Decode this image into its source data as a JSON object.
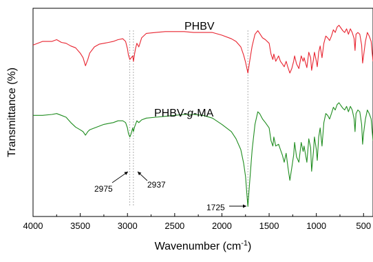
{
  "chart_data": {
    "type": "line",
    "xlabel": "Wavenumber (cm",
    "xlabel_superscript": "-1",
    "xlabel_suffix": ")",
    "ylabel": "Transmittance (%)",
    "xlim": [
      4000,
      400
    ],
    "x_reversed": true,
    "x_ticks": [
      4000,
      3500,
      3000,
      2500,
      2000,
      1500,
      1000,
      500
    ],
    "y_ticks_shown": false,
    "grid": false,
    "series": [
      {
        "name": "PHBV",
        "color": "#e8232f",
        "points": [
          [
            4000,
            0.74
          ],
          [
            3900,
            0.7
          ],
          [
            3800,
            0.7
          ],
          [
            3750,
            0.68
          ],
          [
            3700,
            0.71
          ],
          [
            3650,
            0.72
          ],
          [
            3600,
            0.75
          ],
          [
            3550,
            0.77
          ],
          [
            3500,
            0.83
          ],
          [
            3470,
            0.88
          ],
          [
            3445,
            0.97
          ],
          [
            3420,
            0.9
          ],
          [
            3400,
            0.83
          ],
          [
            3350,
            0.76
          ],
          [
            3300,
            0.73
          ],
          [
            3250,
            0.72
          ],
          [
            3200,
            0.71
          ],
          [
            3150,
            0.7
          ],
          [
            3100,
            0.68
          ],
          [
            3050,
            0.67
          ],
          [
            3020,
            0.7
          ],
          [
            3000,
            0.78
          ],
          [
            2990,
            0.85
          ],
          [
            2975,
            0.9
          ],
          [
            2960,
            0.88
          ],
          [
            2945,
            0.86
          ],
          [
            2937,
            0.92
          ],
          [
            2925,
            0.84
          ],
          [
            2915,
            0.78
          ],
          [
            2900,
            0.72
          ],
          [
            2880,
            0.76
          ],
          [
            2850,
            0.66
          ],
          [
            2800,
            0.61
          ],
          [
            2700,
            0.6
          ],
          [
            2600,
            0.59
          ],
          [
            2500,
            0.59
          ],
          [
            2400,
            0.59
          ],
          [
            2300,
            0.6
          ],
          [
            2200,
            0.6
          ],
          [
            2100,
            0.6
          ],
          [
            2000,
            0.63
          ],
          [
            1900,
            0.67
          ],
          [
            1850,
            0.7
          ],
          [
            1800,
            0.76
          ],
          [
            1770,
            0.85
          ],
          [
            1750,
            0.93
          ],
          [
            1735,
            1.0
          ],
          [
            1725,
            1.05
          ],
          [
            1715,
            0.98
          ],
          [
            1700,
            0.88
          ],
          [
            1680,
            0.75
          ],
          [
            1650,
            0.62
          ],
          [
            1620,
            0.58
          ],
          [
            1600,
            0.61
          ],
          [
            1570,
            0.66
          ],
          [
            1540,
            0.68
          ],
          [
            1500,
            0.72
          ],
          [
            1480,
            0.84
          ],
          [
            1460,
            0.9
          ],
          [
            1450,
            0.84
          ],
          [
            1430,
            0.92
          ],
          [
            1400,
            0.86
          ],
          [
            1380,
            0.92
          ],
          [
            1360,
            0.95
          ],
          [
            1340,
            0.98
          ],
          [
            1320,
            0.92
          ],
          [
            1300,
            0.99
          ],
          [
            1280,
            1.05
          ],
          [
            1260,
            1.0
          ],
          [
            1240,
            0.92
          ],
          [
            1230,
            0.86
          ],
          [
            1210,
            0.95
          ],
          [
            1185,
            1.0
          ],
          [
            1160,
            0.86
          ],
          [
            1140,
            0.92
          ],
          [
            1130,
            0.88
          ],
          [
            1100,
            0.99
          ],
          [
            1080,
            0.82
          ],
          [
            1060,
            0.88
          ],
          [
            1050,
            1.02
          ],
          [
            1030,
            0.9
          ],
          [
            1020,
            0.82
          ],
          [
            1000,
            0.92
          ],
          [
            990,
            0.98
          ],
          [
            975,
            0.82
          ],
          [
            960,
            0.75
          ],
          [
            940,
            0.88
          ],
          [
            920,
            0.72
          ],
          [
            900,
            0.64
          ],
          [
            880,
            0.66
          ],
          [
            860,
            0.69
          ],
          [
            840,
            0.64
          ],
          [
            820,
            0.57
          ],
          [
            800,
            0.6
          ],
          [
            780,
            0.54
          ],
          [
            760,
            0.52
          ],
          [
            740,
            0.55
          ],
          [
            720,
            0.58
          ],
          [
            700,
            0.6
          ],
          [
            680,
            0.56
          ],
          [
            660,
            0.62
          ],
          [
            640,
            0.56
          ],
          [
            620,
            0.6
          ],
          [
            600,
            0.67
          ],
          [
            590,
            0.8
          ],
          [
            580,
            0.62
          ],
          [
            560,
            0.6
          ],
          [
            540,
            0.62
          ],
          [
            520,
            0.74
          ],
          [
            510,
            0.94
          ],
          [
            500,
            0.86
          ],
          [
            480,
            0.7
          ],
          [
            460,
            0.6
          ],
          [
            440,
            0.64
          ],
          [
            420,
            0.7
          ],
          [
            400,
            0.92
          ]
        ]
      },
      {
        "name": "PHBV-g-MA",
        "label_prefix": "PHBV-",
        "label_italic": "g",
        "label_suffix": "-MA",
        "color": "#1e8c1e",
        "points": [
          [
            4000,
            1.52
          ],
          [
            3900,
            1.52
          ],
          [
            3800,
            1.51
          ],
          [
            3750,
            1.5
          ],
          [
            3700,
            1.52
          ],
          [
            3650,
            1.54
          ],
          [
            3600,
            1.6
          ],
          [
            3550,
            1.65
          ],
          [
            3500,
            1.68
          ],
          [
            3470,
            1.7
          ],
          [
            3445,
            1.74
          ],
          [
            3420,
            1.7
          ],
          [
            3400,
            1.68
          ],
          [
            3350,
            1.66
          ],
          [
            3300,
            1.64
          ],
          [
            3250,
            1.62
          ],
          [
            3200,
            1.61
          ],
          [
            3150,
            1.6
          ],
          [
            3100,
            1.58
          ],
          [
            3050,
            1.58
          ],
          [
            3020,
            1.6
          ],
          [
            3000,
            1.66
          ],
          [
            2990,
            1.72
          ],
          [
            2975,
            1.76
          ],
          [
            2960,
            1.72
          ],
          [
            2945,
            1.66
          ],
          [
            2937,
            1.7
          ],
          [
            2925,
            1.65
          ],
          [
            2915,
            1.62
          ],
          [
            2900,
            1.58
          ],
          [
            2880,
            1.6
          ],
          [
            2850,
            1.57
          ],
          [
            2800,
            1.55
          ],
          [
            2700,
            1.54
          ],
          [
            2600,
            1.53
          ],
          [
            2500,
            1.52
          ],
          [
            2400,
            1.51
          ],
          [
            2300,
            1.51
          ],
          [
            2200,
            1.52
          ],
          [
            2100,
            1.55
          ],
          [
            2000,
            1.62
          ],
          [
            1900,
            1.7
          ],
          [
            1850,
            1.78
          ],
          [
            1800,
            1.9
          ],
          [
            1770,
            2.05
          ],
          [
            1750,
            2.2
          ],
          [
            1735,
            2.4
          ],
          [
            1725,
            2.53
          ],
          [
            1715,
            2.38
          ],
          [
            1700,
            2.18
          ],
          [
            1680,
            1.9
          ],
          [
            1650,
            1.62
          ],
          [
            1620,
            1.48
          ],
          [
            1600,
            1.5
          ],
          [
            1570,
            1.56
          ],
          [
            1540,
            1.6
          ],
          [
            1500,
            1.66
          ],
          [
            1480,
            1.8
          ],
          [
            1460,
            1.86
          ],
          [
            1450,
            1.76
          ],
          [
            1430,
            1.86
          ],
          [
            1400,
            1.84
          ],
          [
            1380,
            1.9
          ],
          [
            1360,
            1.96
          ],
          [
            1340,
            2.04
          ],
          [
            1320,
            1.94
          ],
          [
            1300,
            2.1
          ],
          [
            1280,
            2.24
          ],
          [
            1260,
            2.1
          ],
          [
            1240,
            1.96
          ],
          [
            1230,
            1.82
          ],
          [
            1210,
            1.98
          ],
          [
            1185,
            2.04
          ],
          [
            1160,
            1.82
          ],
          [
            1140,
            1.92
          ],
          [
            1130,
            1.86
          ],
          [
            1100,
            2.04
          ],
          [
            1080,
            1.78
          ],
          [
            1060,
            1.88
          ],
          [
            1050,
            2.14
          ],
          [
            1030,
            1.92
          ],
          [
            1020,
            1.76
          ],
          [
            1000,
            1.9
          ],
          [
            990,
            2.02
          ],
          [
            975,
            1.76
          ],
          [
            960,
            1.66
          ],
          [
            940,
            1.86
          ],
          [
            920,
            1.6
          ],
          [
            900,
            1.5
          ],
          [
            880,
            1.52
          ],
          [
            860,
            1.56
          ],
          [
            840,
            1.5
          ],
          [
            820,
            1.43
          ],
          [
            800,
            1.46
          ],
          [
            780,
            1.4
          ],
          [
            760,
            1.38
          ],
          [
            740,
            1.41
          ],
          [
            720,
            1.44
          ],
          [
            700,
            1.46
          ],
          [
            680,
            1.42
          ],
          [
            660,
            1.48
          ],
          [
            640,
            1.42
          ],
          [
            620,
            1.46
          ],
          [
            600,
            1.56
          ],
          [
            590,
            1.7
          ],
          [
            580,
            1.5
          ],
          [
            560,
            1.46
          ],
          [
            540,
            1.48
          ],
          [
            520,
            1.62
          ],
          [
            510,
            1.84
          ],
          [
            500,
            1.72
          ],
          [
            480,
            1.56
          ],
          [
            460,
            1.46
          ],
          [
            440,
            1.5
          ],
          [
            420,
            1.56
          ],
          [
            400,
            1.8
          ]
        ]
      }
    ],
    "reference_lines": [
      2975,
      2937,
      1725
    ],
    "annotations": [
      {
        "label": "2975",
        "at": 2975,
        "series": 1
      },
      {
        "label": "2937",
        "at": 2937,
        "series": 1
      },
      {
        "label": "1725",
        "at": 1725,
        "series": 1
      }
    ]
  }
}
